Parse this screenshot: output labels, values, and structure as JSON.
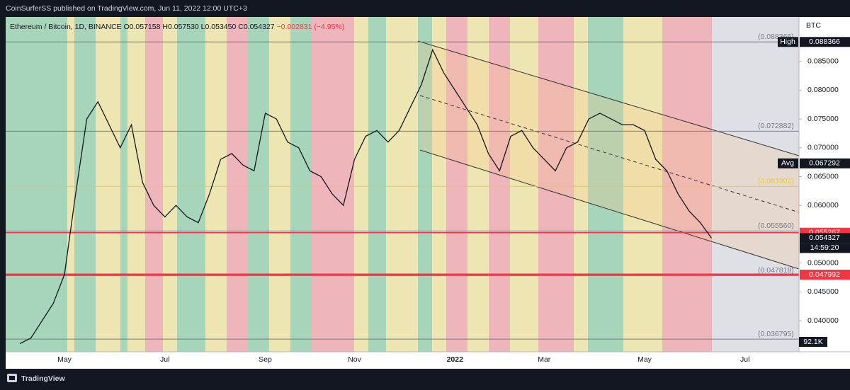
{
  "header": {
    "text": "CoinSurferSS published on TradingView.com, Jun 11, 2022 12:00 UTC+3"
  },
  "footer": {
    "text": "TradingView"
  },
  "chart_data": {
    "type": "line",
    "title": "Ethereum / Bitcoin, 1D, BINANCE",
    "ohlc": [
      "O0.057158",
      "H0.057530",
      "L0.053450",
      "C0.054327",
      "−0.002831 (−4.95%)"
    ],
    "axis_unit": "BTC",
    "color": "#131722",
    "categories": [
      null,
      null,
      null,
      null,
      "May",
      null,
      null,
      null,
      null,
      null,
      null,
      null,
      null,
      "Jul",
      null,
      null,
      null,
      null,
      null,
      null,
      null,
      null,
      "Sep",
      null,
      null,
      null,
      null,
      null,
      null,
      null,
      "Nov",
      null,
      null,
      null,
      null,
      null,
      null,
      null,
      null,
      "2022",
      null,
      null,
      null,
      null,
      null,
      null,
      null,
      "Mar",
      null,
      null,
      null,
      null,
      null,
      null,
      null,
      null,
      "May",
      null,
      null,
      null,
      null,
      null,
      null,
      null,
      null,
      "Jul",
      null,
      null,
      null,
      null
    ],
    "values": [
      0.036,
      0.037,
      0.04,
      0.043,
      0.048,
      0.062,
      0.075,
      0.078,
      0.074,
      0.07,
      0.074,
      0.064,
      0.06,
      0.058,
      0.06,
      0.058,
      0.057,
      0.062,
      0.068,
      0.069,
      0.067,
      0.066,
      0.076,
      0.075,
      0.071,
      0.07,
      0.066,
      0.065,
      0.062,
      0.06,
      0.068,
      0.072,
      0.073,
      0.071,
      0.073,
      0.077,
      0.081,
      0.087,
      0.083,
      0.08,
      0.077,
      0.074,
      0.069,
      0.066,
      0.072,
      0.073,
      0.07,
      0.068,
      0.066,
      0.07,
      0.071,
      0.075,
      0.076,
      0.075,
      0.074,
      0.074,
      0.073,
      0.068,
      0.066,
      0.062,
      0.059,
      0.057,
      0.054327,
      null,
      null,
      null,
      null,
      null,
      null,
      null
    ],
    "ylim": [
      0.0346,
      0.0927
    ],
    "yticks": [
      {
        "value": 0.04,
        "label": "0.040000"
      },
      {
        "value": 0.045,
        "label": "0.045000"
      },
      {
        "value": 0.05,
        "label": "0.050000"
      },
      {
        "value": 0.055,
        "label": "0.055000"
      },
      {
        "value": 0.06,
        "label": "0.060000"
      },
      {
        "value": 0.065,
        "label": "0.065000"
      },
      {
        "value": 0.07,
        "label": "0.070000"
      },
      {
        "value": 0.075,
        "label": "0.075000"
      },
      {
        "value": 0.08,
        "label": "0.080000"
      },
      {
        "value": 0.085,
        "label": "0.085000"
      }
    ],
    "levels": [
      {
        "value": 0.088366,
        "label": "(0.088366)",
        "color": "#787b86"
      },
      {
        "value": 0.072882,
        "label": "(0.072882)",
        "color": "#787b86"
      },
      {
        "value": 0.063302,
        "label": "(0.063302)",
        "color": "#e6c84a"
      },
      {
        "value": 0.05556,
        "label": "(0.055560)",
        "color": "#787b86"
      },
      {
        "value": 0.047818,
        "label": "(0.047818)",
        "color": "#787b86"
      },
      {
        "value": 0.036795,
        "label": "(0.036795)",
        "color": "#787b86"
      }
    ],
    "hlines": [
      {
        "value": 0.055267,
        "color": "#f23645"
      },
      {
        "value": 0.047992,
        "color": "#f23645"
      }
    ],
    "tags": [
      {
        "name": "High",
        "value": 0.088366,
        "color": "#131722"
      },
      {
        "name": "Avg",
        "value": 0.067292,
        "color": "#131722"
      },
      {
        "value": 0.055267,
        "color": "#f23645"
      },
      {
        "value": 0.054327,
        "color": "#131722",
        "sub": "14:59:20"
      },
      {
        "value": 0.047992,
        "color": "#f23645"
      }
    ],
    "volume_label": "92.1K"
  }
}
